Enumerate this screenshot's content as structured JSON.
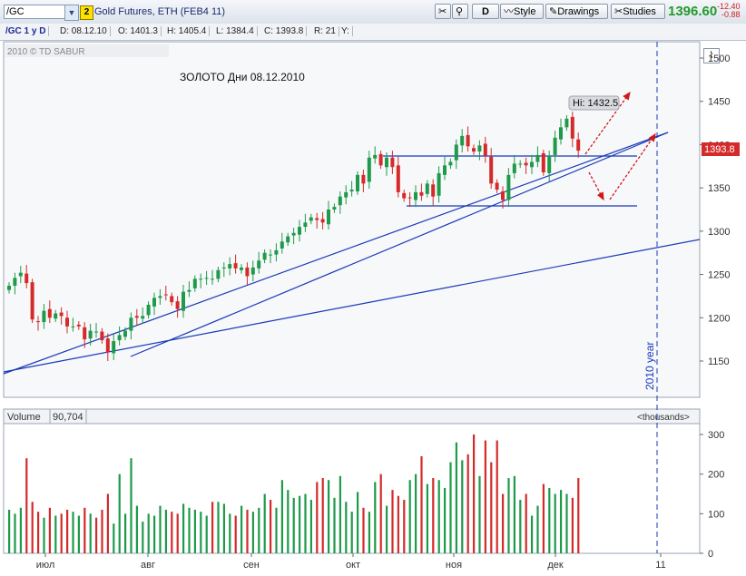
{
  "toolbar": {
    "symbol": "/GC",
    "badge": "2",
    "description": "Gold Futures, ETH (FEB4 11)",
    "period_button": "D",
    "style_label": "Style",
    "drawings_label": "Drawings",
    "studies_label": "Studies",
    "last_price": "1396.60",
    "change": "-12.40",
    "change_pct": "-0.88"
  },
  "infobar": {
    "title": "/GC 1 y D",
    "date": "D: 08.12.10",
    "open": "O: 1401.3",
    "high": "H: 1405.4",
    "low": "L: 1384.4",
    "close": "C: 1393.8",
    "range": "R: 21",
    "y": "Y:"
  },
  "price_panel": {
    "watermark": "2010 © TD SABUR",
    "annotation": "ЗОЛОТО  Дни  08.12.2010",
    "hi_label": "Hi: 1432.5",
    "last_label": "1393.8",
    "year_label": "2010 year",
    "y_ticks": [
      "1500",
      "1450",
      "1400",
      "1350",
      "1300",
      "1250",
      "1200",
      "1150"
    ]
  },
  "volume_panel": {
    "label": "Volume",
    "value": "90,704",
    "units": "<thousands>",
    "y_ticks": [
      "300",
      "200",
      "100",
      "0"
    ]
  },
  "x_axis": [
    "июл",
    "авг",
    "сен",
    "окт",
    "ноя",
    "дек",
    "11"
  ],
  "colors": {
    "up": "#1e9a4a",
    "down": "#d42a2a",
    "trend": "#1a3ab8",
    "arrow": "#d01818"
  },
  "chart_data": {
    "type": "candlestick",
    "ylim": [
      1115,
      1525
    ],
    "volume_ylim": [
      0,
      320
    ],
    "close": [
      1237,
      1246,
      1252,
      1240,
      1198,
      1195,
      1208,
      1200,
      1205,
      1202,
      1190,
      1190,
      1190,
      1175,
      1185,
      1184,
      1174,
      1160,
      1173,
      1180,
      1185,
      1200,
      1200,
      1202,
      1215,
      1223,
      1225,
      1226,
      1218,
      1210,
      1230,
      1232,
      1245,
      1245,
      1246,
      1245,
      1255,
      1258,
      1262,
      1257,
      1258,
      1248,
      1258,
      1266,
      1275,
      1273,
      1278,
      1288,
      1294,
      1298,
      1305,
      1310,
      1316,
      1313,
      1310,
      1325,
      1328,
      1340,
      1345,
      1348,
      1365,
      1355,
      1385,
      1388,
      1376,
      1385,
      1374,
      1345,
      1338,
      1338,
      1345,
      1341,
      1355,
      1340,
      1367,
      1376,
      1380,
      1400,
      1410,
      1398,
      1392,
      1399,
      1387,
      1355,
      1348,
      1336,
      1365,
      1378,
      1378,
      1376,
      1380,
      1388,
      1368,
      1387,
      1408,
      1420,
      1430,
      1407,
      1393
    ],
    "volume": [
      110,
      100,
      115,
      240,
      130,
      105,
      90,
      115,
      95,
      100,
      110,
      105,
      95,
      115,
      100,
      90,
      110,
      150,
      75,
      200,
      100,
      240,
      120,
      80,
      100,
      95,
      120,
      110,
      105,
      100,
      125,
      115,
      110,
      105,
      95,
      130,
      130,
      125,
      100,
      95,
      120,
      110,
      105,
      115,
      150,
      135,
      115,
      185,
      160,
      140,
      145,
      150,
      135,
      180,
      190,
      185,
      140,
      195,
      130,
      105,
      155,
      115,
      105,
      180,
      200,
      120,
      160,
      145,
      135,
      185,
      200,
      245,
      175,
      190,
      185,
      165,
      230,
      280,
      235,
      250,
      300,
      195,
      285,
      230,
      285,
      150,
      190,
      195,
      135,
      150,
      95,
      120,
      175,
      165,
      150,
      160,
      150,
      140,
      190
    ]
  }
}
